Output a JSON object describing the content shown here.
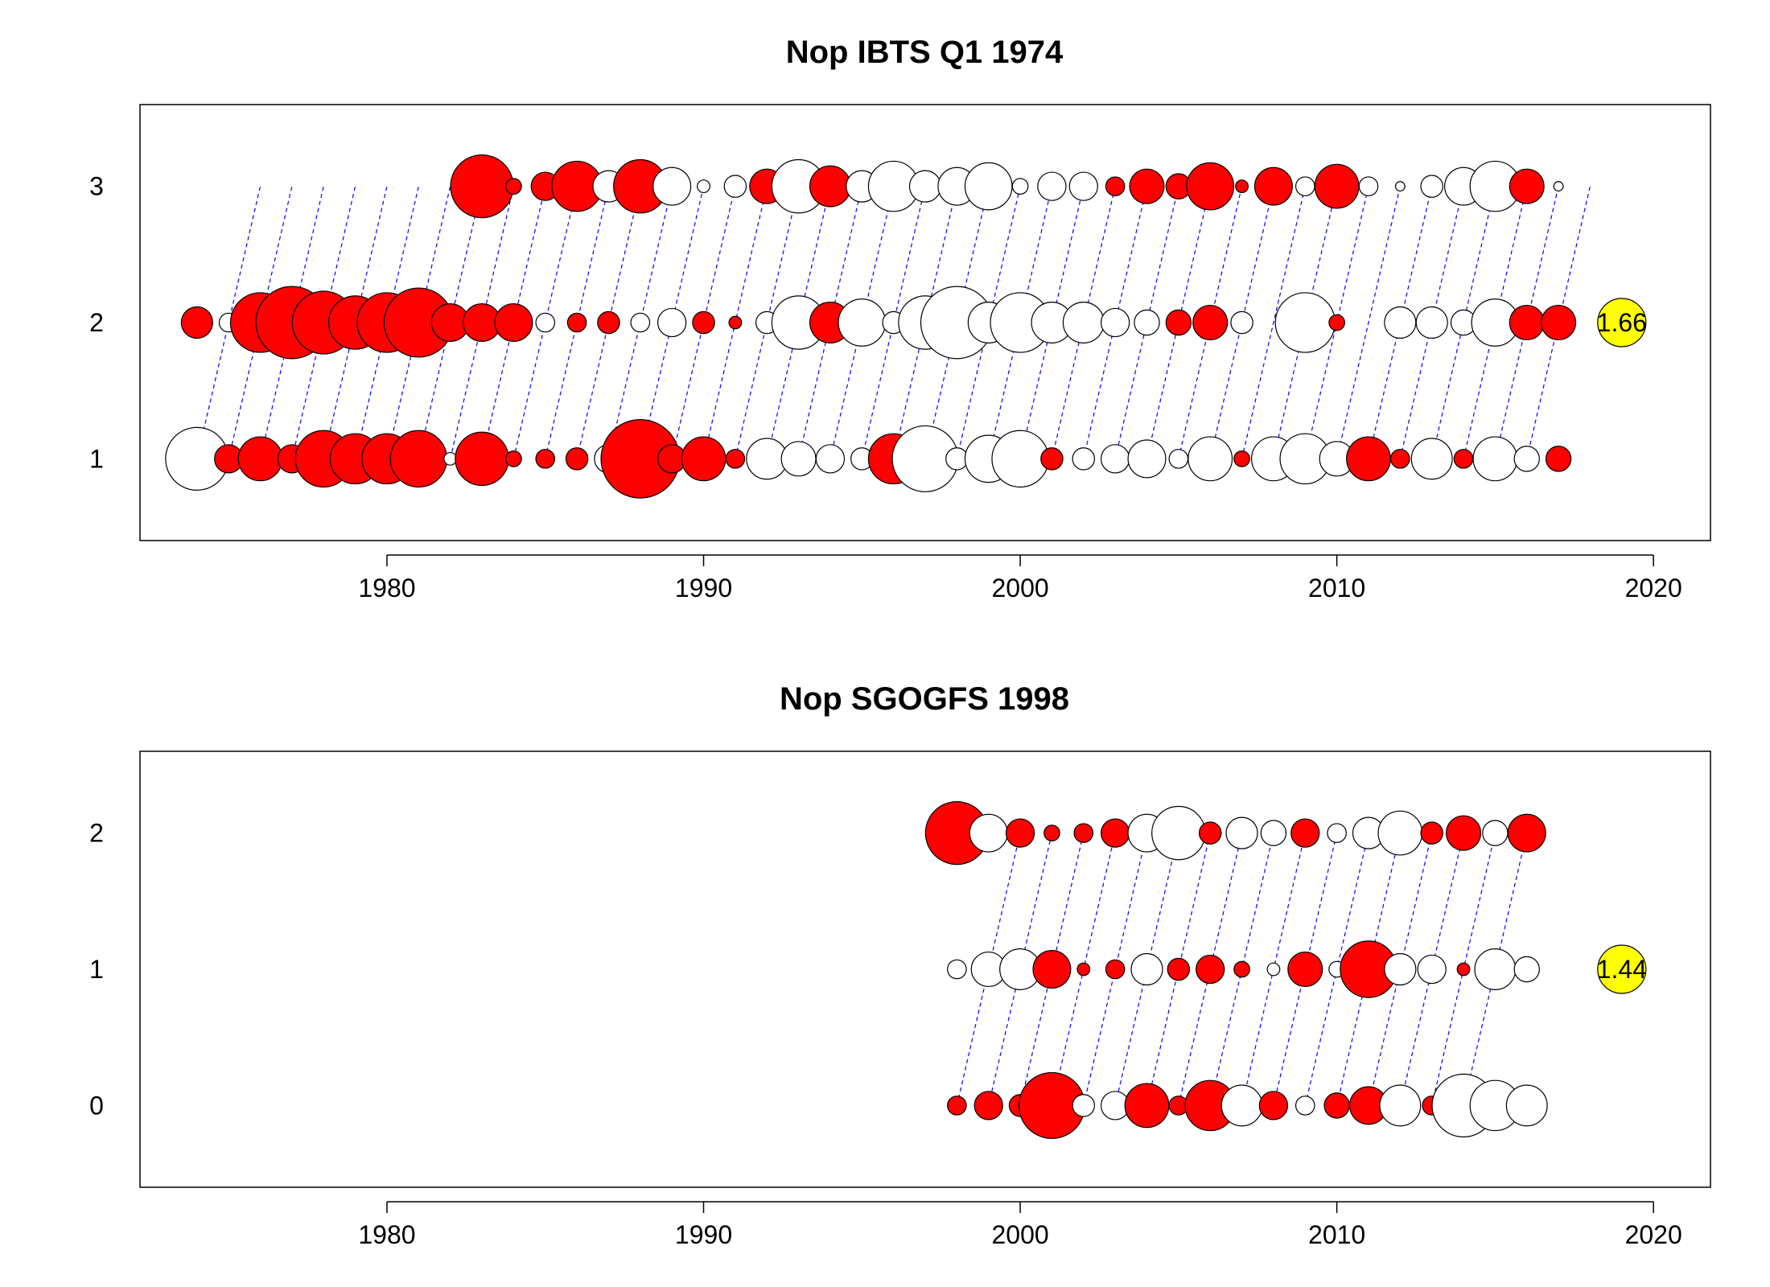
{
  "chart_data": [
    {
      "type": "scatter",
      "title": "Nop IBTS Q1 1974",
      "xlabel": "",
      "ylabel": "",
      "xlim": [
        1972.2,
        2021.8
      ],
      "ylim": [
        0.4,
        3.6
      ],
      "x_ticks": [
        1980,
        1990,
        2000,
        2010,
        2020
      ],
      "y_ticks": [
        1,
        2,
        3
      ],
      "grid": false,
      "colors": {
        "positive": "#ff0000",
        "negative": "#ffffff",
        "outline": "#000000",
        "cohort_line": "#0000ff",
        "summary": "#ffff00"
      },
      "cohort_lines": {
        "first_year": 1974,
        "last_year": 2016,
        "from_age": 1,
        "to_age": 3
      },
      "summary_marker": {
        "label": "1.66",
        "x": 2019,
        "y": 2
      },
      "series": [
        {
          "age": 1,
          "bubbles": [
            [
              1974,
              1.0,
              0
            ],
            [
              1975,
              0.45,
              1
            ],
            [
              1976,
              0.7,
              1
            ],
            [
              1977,
              0.45,
              1
            ],
            [
              1978,
              0.9,
              1
            ],
            [
              1979,
              0.8,
              1
            ],
            [
              1980,
              0.8,
              1
            ],
            [
              1981,
              0.9,
              1
            ],
            [
              1982,
              0.2,
              0
            ],
            [
              1983,
              0.85,
              1
            ],
            [
              1984,
              0.25,
              1
            ],
            [
              1985,
              0.3,
              1
            ],
            [
              1986,
              0.35,
              1
            ],
            [
              1987,
              0.45,
              0
            ],
            [
              1988,
              1.25,
              1
            ],
            [
              1989,
              0.45,
              1
            ],
            [
              1990,
              0.7,
              1
            ],
            [
              1991,
              0.3,
              1
            ],
            [
              1992,
              0.65,
              0
            ],
            [
              1993,
              0.55,
              0
            ],
            [
              1994,
              0.45,
              0
            ],
            [
              1995,
              0.35,
              0
            ],
            [
              1996,
              0.8,
              1
            ],
            [
              1997,
              1.05,
              0
            ],
            [
              1998,
              0.35,
              0
            ],
            [
              1999,
              0.75,
              0
            ],
            [
              2000,
              0.9,
              0
            ],
            [
              2001,
              0.35,
              1
            ],
            [
              2002,
              0.35,
              0
            ],
            [
              2003,
              0.45,
              0
            ],
            [
              2004,
              0.6,
              0
            ],
            [
              2005,
              0.3,
              0
            ],
            [
              2006,
              0.7,
              0
            ],
            [
              2007,
              0.25,
              1
            ],
            [
              2008,
              0.7,
              0
            ],
            [
              2009,
              0.8,
              0
            ],
            [
              2010,
              0.55,
              0
            ],
            [
              2011,
              0.7,
              1
            ],
            [
              2012,
              0.3,
              1
            ],
            [
              2013,
              0.65,
              0
            ],
            [
              2014,
              0.3,
              1
            ],
            [
              2015,
              0.7,
              0
            ],
            [
              2016,
              0.4,
              0
            ],
            [
              2017,
              0.4,
              1
            ]
          ]
        },
        {
          "age": 2,
          "bubbles": [
            [
              1974,
              0.5,
              1
            ],
            [
              1975,
              0.3,
              0
            ],
            [
              1976,
              0.95,
              1
            ],
            [
              1977,
              1.15,
              1
            ],
            [
              1978,
              1.0,
              1
            ],
            [
              1979,
              0.85,
              1
            ],
            [
              1980,
              0.95,
              1
            ],
            [
              1981,
              1.1,
              1
            ],
            [
              1982,
              0.6,
              1
            ],
            [
              1983,
              0.6,
              1
            ],
            [
              1984,
              0.6,
              1
            ],
            [
              1985,
              0.3,
              0
            ],
            [
              1986,
              0.3,
              1
            ],
            [
              1987,
              0.35,
              1
            ],
            [
              1988,
              0.3,
              0
            ],
            [
              1989,
              0.45,
              0
            ],
            [
              1990,
              0.35,
              1
            ],
            [
              1991,
              0.2,
              1
            ],
            [
              1992,
              0.35,
              0
            ],
            [
              1993,
              0.85,
              0
            ],
            [
              1994,
              0.65,
              1
            ],
            [
              1995,
              0.75,
              0
            ],
            [
              1996,
              0.35,
              0
            ],
            [
              1997,
              0.85,
              0
            ],
            [
              1998,
              1.15,
              0
            ],
            [
              1999,
              0.65,
              0
            ],
            [
              2000,
              0.95,
              0
            ],
            [
              2001,
              0.65,
              0
            ],
            [
              2002,
              0.65,
              0
            ],
            [
              2003,
              0.45,
              0
            ],
            [
              2004,
              0.4,
              0
            ],
            [
              2005,
              0.4,
              1
            ],
            [
              2006,
              0.55,
              1
            ],
            [
              2007,
              0.35,
              0
            ],
            [
              2009,
              0.95,
              0
            ],
            [
              2010,
              0.25,
              1
            ],
            [
              2012,
              0.5,
              0
            ],
            [
              2013,
              0.5,
              0
            ],
            [
              2014,
              0.4,
              0
            ],
            [
              2015,
              0.75,
              0
            ],
            [
              2016,
              0.55,
              1
            ],
            [
              2017,
              0.55,
              1
            ]
          ]
        },
        {
          "age": 3,
          "bubbles": [
            [
              1983,
              1.0,
              1
            ],
            [
              1984,
              0.25,
              1
            ],
            [
              1985,
              0.45,
              1
            ],
            [
              1986,
              0.8,
              1
            ],
            [
              1987,
              0.5,
              0
            ],
            [
              1988,
              0.85,
              1
            ],
            [
              1989,
              0.6,
              0
            ],
            [
              1990,
              0.2,
              0
            ],
            [
              1991,
              0.35,
              0
            ],
            [
              1992,
              0.55,
              1
            ],
            [
              1993,
              0.85,
              0
            ],
            [
              1994,
              0.65,
              1
            ],
            [
              1995,
              0.5,
              0
            ],
            [
              1996,
              0.8,
              0
            ],
            [
              1997,
              0.5,
              0
            ],
            [
              1998,
              0.6,
              0
            ],
            [
              1999,
              0.75,
              0
            ],
            [
              2000,
              0.25,
              0
            ],
            [
              2001,
              0.45,
              0
            ],
            [
              2002,
              0.45,
              0
            ],
            [
              2003,
              0.3,
              1
            ],
            [
              2004,
              0.55,
              1
            ],
            [
              2005,
              0.4,
              1
            ],
            [
              2006,
              0.75,
              1
            ],
            [
              2007,
              0.2,
              1
            ],
            [
              2008,
              0.6,
              1
            ],
            [
              2009,
              0.3,
              0
            ],
            [
              2010,
              0.7,
              1
            ],
            [
              2011,
              0.3,
              0
            ],
            [
              2012,
              0.15,
              0
            ],
            [
              2013,
              0.35,
              0
            ],
            [
              2014,
              0.6,
              0
            ],
            [
              2015,
              0.8,
              0
            ],
            [
              2016,
              0.55,
              1
            ],
            [
              2017,
              0.15,
              0
            ]
          ]
        }
      ]
    },
    {
      "type": "scatter",
      "title": "Nop SGOGFS 1998",
      "xlabel": "",
      "ylabel": "",
      "xlim": [
        1972.2,
        2021.8
      ],
      "ylim": [
        -0.6,
        2.6
      ],
      "x_ticks": [
        1980,
        1990,
        2000,
        2010,
        2020
      ],
      "y_ticks": [
        0,
        1,
        2
      ],
      "grid": false,
      "colors": {
        "positive": "#ff0000",
        "negative": "#ffffff",
        "outline": "#000000",
        "cohort_line": "#0000ff",
        "summary": "#ffff00"
      },
      "cohort_lines": {
        "first_year": 1998,
        "last_year": 2014,
        "from_age": 0,
        "to_age": 2
      },
      "summary_marker": {
        "label": "1.44",
        "x": 2019,
        "y": 1
      },
      "series": [
        {
          "age": 0,
          "bubbles": [
            [
              1998,
              0.3,
              1
            ],
            [
              1999,
              0.45,
              1
            ],
            [
              2000,
              0.35,
              1
            ],
            [
              2001,
              1.05,
              1
            ],
            [
              2002,
              0.35,
              0
            ],
            [
              2003,
              0.45,
              0
            ],
            [
              2004,
              0.7,
              1
            ],
            [
              2005,
              0.3,
              1
            ],
            [
              2006,
              0.8,
              1
            ],
            [
              2007,
              0.65,
              0
            ],
            [
              2008,
              0.45,
              1
            ],
            [
              2009,
              0.3,
              0
            ],
            [
              2010,
              0.4,
              1
            ],
            [
              2011,
              0.6,
              1
            ],
            [
              2012,
              0.65,
              0
            ],
            [
              2013,
              0.3,
              1
            ],
            [
              2014,
              1.0,
              0
            ],
            [
              2015,
              0.8,
              0
            ],
            [
              2016,
              0.65,
              0
            ]
          ]
        },
        {
          "age": 1,
          "bubbles": [
            [
              1998,
              0.3,
              0
            ],
            [
              1999,
              0.55,
              0
            ],
            [
              2000,
              0.65,
              0
            ],
            [
              2001,
              0.6,
              1
            ],
            [
              2002,
              0.2,
              1
            ],
            [
              2003,
              0.3,
              1
            ],
            [
              2004,
              0.5,
              0
            ],
            [
              2005,
              0.35,
              1
            ],
            [
              2006,
              0.45,
              1
            ],
            [
              2007,
              0.25,
              1
            ],
            [
              2008,
              0.2,
              0
            ],
            [
              2009,
              0.55,
              1
            ],
            [
              2010,
              0.25,
              0
            ],
            [
              2011,
              0.9,
              1
            ],
            [
              2012,
              0.5,
              0
            ],
            [
              2013,
              0.45,
              0
            ],
            [
              2014,
              0.2,
              1
            ],
            [
              2015,
              0.65,
              0
            ],
            [
              2016,
              0.4,
              0
            ]
          ]
        },
        {
          "age": 2,
          "bubbles": [
            [
              1998,
              1.0,
              1
            ],
            [
              1999,
              0.6,
              0
            ],
            [
              2000,
              0.45,
              1
            ],
            [
              2001,
              0.25,
              1
            ],
            [
              2002,
              0.3,
              1
            ],
            [
              2003,
              0.45,
              1
            ],
            [
              2004,
              0.6,
              0
            ],
            [
              2005,
              0.85,
              0
            ],
            [
              2006,
              0.35,
              1
            ],
            [
              2007,
              0.5,
              0
            ],
            [
              2008,
              0.4,
              0
            ],
            [
              2009,
              0.45,
              1
            ],
            [
              2010,
              0.3,
              0
            ],
            [
              2011,
              0.5,
              0
            ],
            [
              2012,
              0.7,
              0
            ],
            [
              2013,
              0.35,
              1
            ],
            [
              2014,
              0.55,
              1
            ],
            [
              2015,
              0.4,
              0
            ],
            [
              2016,
              0.6,
              1
            ]
          ]
        }
      ]
    }
  ]
}
